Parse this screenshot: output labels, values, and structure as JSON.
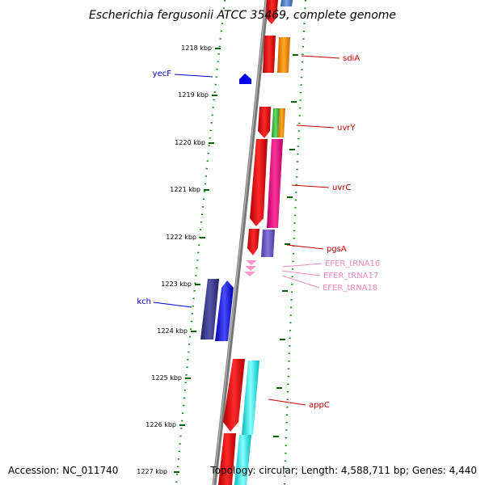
{
  "title": "Escherichia fergusonii ATCC 35469, complete genome",
  "footer": {
    "accession": "Accession: NC_011740",
    "summary": "Topology: circular; Length: 4,588,711 bp; Genes: 4,440"
  },
  "ticks": [
    {
      "label": "1218 kbp"
    },
    {
      "label": "1219 kbp"
    },
    {
      "label": "1220 kbp"
    },
    {
      "label": "1221 kbp"
    },
    {
      "label": "1222 kbp"
    },
    {
      "label": "1223 kbp"
    },
    {
      "label": "1224 kbp"
    },
    {
      "label": "1225 kbp"
    },
    {
      "label": "1226 kbp"
    },
    {
      "label": "1227 kbp"
    }
  ],
  "left_labels": [
    {
      "text": "yecF",
      "color": "#0000cc"
    },
    {
      "text": "kch",
      "color": "#0000cc"
    }
  ],
  "right_labels": [
    {
      "text": "sdiA",
      "color": "#cc0000"
    },
    {
      "text": "uvrY",
      "color": "#cc0000"
    },
    {
      "text": "uvrC",
      "color": "#cc0000"
    },
    {
      "text": "pgsA",
      "color": "#cc0000"
    },
    {
      "text": "EFER_tRNA16",
      "color": "#ee88bb"
    },
    {
      "text": "EFER_tRNA17",
      "color": "#ee88bb"
    },
    {
      "text": "EFER_tRNA18",
      "color": "#ee88bb"
    },
    {
      "text": "appC",
      "color": "#cc0000"
    }
  ],
  "colors": {
    "backbone": "#808080",
    "forward_gene": "#0000ff",
    "reverse_gene": "#ff0000",
    "tick_mark": "#006600",
    "dotted_line": "#008800",
    "trna": "#ff99cc",
    "cog_orange": "#ff9900",
    "cog_magenta": "#ff1493",
    "cog_green": "#44bb44",
    "cog_purple": "#6a5acd",
    "cog_navy": "#3a3a8a",
    "cog_cyan": "#00ffff",
    "cog_steel": "#4a86c8"
  }
}
